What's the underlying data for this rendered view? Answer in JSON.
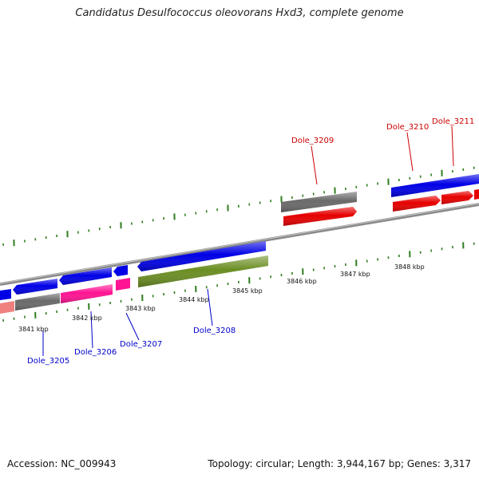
{
  "title": "Candidatus Desulfococcus oleovorans Hxd3, complete genome",
  "footer": {
    "accession": "Accession: NC_009943",
    "summary": "Topology: circular; Length: 3,944,167 bp; Genes: 3,317"
  },
  "colors": {
    "backbone": "#8a8a8a",
    "tick": "#2e7d1e",
    "forward_gene": "#0000e6",
    "reverse_gene": "#e60000",
    "grey_feature": "#6a6a6a",
    "pink_feature": "#ff1493",
    "olive_feature": "#6b8e23",
    "salmon_feature": "#f08080",
    "label_reverse": "#cc0000",
    "label_forward": "#0000cc"
  },
  "scale_labels": [
    "3841 kbp",
    "3842 kbp",
    "3843 kbp",
    "3844 kbp",
    "3845 kbp",
    "3846 kbp",
    "3847 kbp",
    "3848 kbp"
  ],
  "gene_labels": [
    "Dole_3205",
    "Dole_3206",
    "Dole_3207",
    "Dole_3208",
    "Dole_3209",
    "Dole_3210",
    "Dole_3211"
  ]
}
